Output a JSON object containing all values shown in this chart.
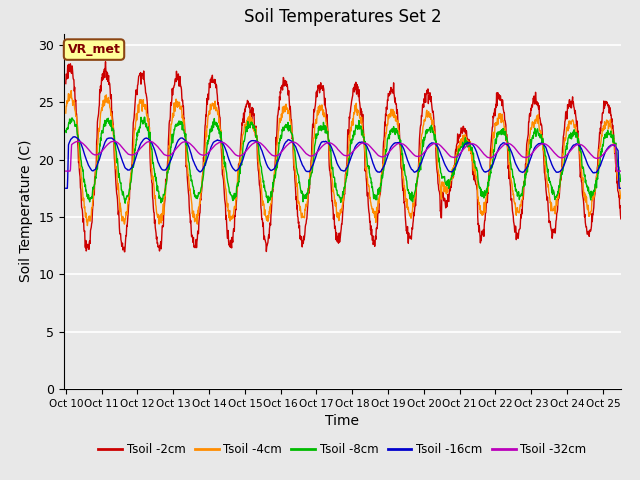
{
  "title": "Soil Temperatures Set 2",
  "xlabel": "Time",
  "ylabel": "Soil Temperature (C)",
  "ylim": [
    0,
    31
  ],
  "yticks": [
    0,
    5,
    10,
    15,
    20,
    25,
    30
  ],
  "day_start": 10,
  "day_end": 25.5,
  "xtick_positions": [
    10,
    11,
    12,
    13,
    14,
    15,
    16,
    17,
    18,
    19,
    20,
    21,
    22,
    23,
    24,
    25
  ],
  "xtick_labels": [
    "Oct 10",
    "Oct 11",
    "Oct 12",
    "Oct 13",
    "Oct 14",
    "Oct 15",
    "Oct 16",
    "Oct 17",
    "Oct 18",
    "Oct 19",
    "Oct 20",
    "Oct 21",
    "Oct 22",
    "Oct 23",
    "Oct 24",
    "Oct 25"
  ],
  "series_colors": [
    "#cc0000",
    "#ff8c00",
    "#00bb00",
    "#0000cc",
    "#bb00bb"
  ],
  "series_labels": [
    "Tsoil -2cm",
    "Tsoil -4cm",
    "Tsoil -8cm",
    "Tsoil -16cm",
    "Tsoil -32cm"
  ],
  "line_width": 1.0,
  "plot_bg_color": "#e8e8e8",
  "fig_bg_color": "#e8e8e8",
  "grid_color": "#ffffff",
  "annotation_text": "VR_met",
  "annotation_color": "#800000",
  "annotation_box_facecolor": "#ffff99",
  "annotation_box_edgecolor": "#8B4513",
  "n_points": 1440
}
